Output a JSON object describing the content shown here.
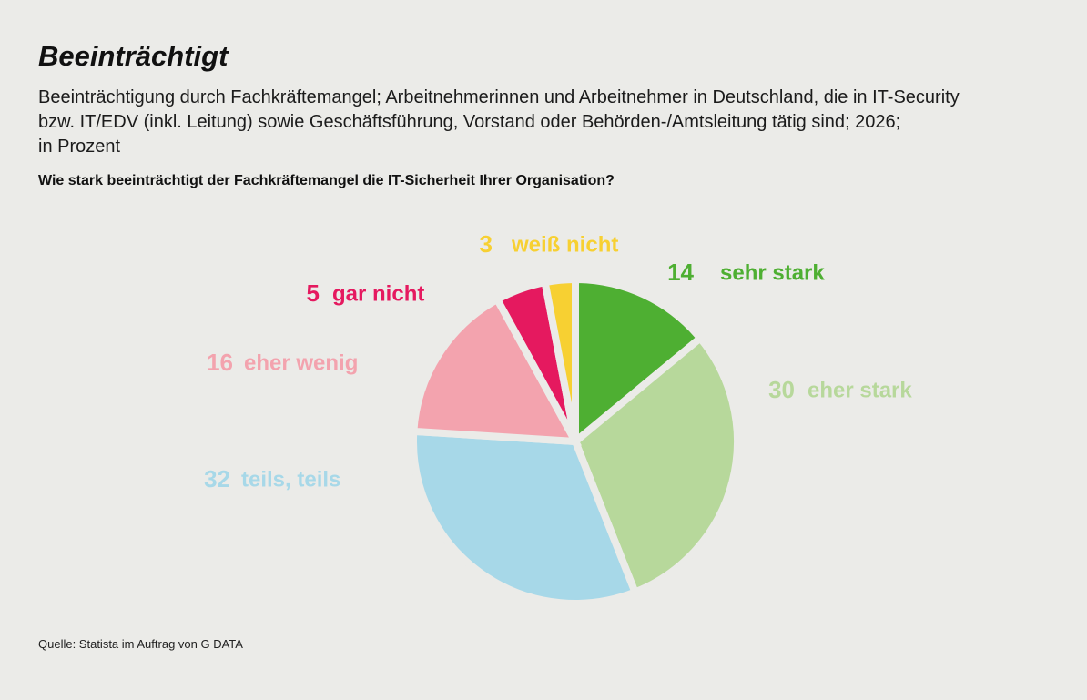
{
  "header": {
    "title": "Beeinträchtigt",
    "subtitle_lines": [
      "Beeinträchtigung durch Fachkräftemangel; Arbeitnehmerinnen und Arbeitnehmer in Deutschland, die in IT-Security",
      "bzw. IT/EDV (inkl. Leitung) sowie Geschäftsführung, Vorstand oder Behörden-/Amtsleitung tätig sind; 2026;",
      "in Prozent"
    ],
    "question": "Wie stark beeinträchtigt der Fachkräftemangel die IT-Sicherheit Ihrer Organisation?"
  },
  "footer": {
    "source": "Quelle: Statista im Auftrag von G DATA"
  },
  "chart_data": {
    "type": "pie",
    "title": "Beeinträchtigt",
    "unit": "Prozent",
    "start_angle_deg": 0,
    "direction": "clockwise",
    "slices": [
      {
        "label": "sehr stark",
        "value": 14,
        "color": "#4eaf32"
      },
      {
        "label": "eher stark",
        "value": 30,
        "color": "#b7d89b"
      },
      {
        "label": "teils, teils",
        "value": 32,
        "color": "#a7d8e8"
      },
      {
        "label": "eher wenig",
        "value": 16,
        "color": "#f3a3ae"
      },
      {
        "label": "gar nicht",
        "value": 5,
        "color": "#e5195f"
      },
      {
        "label": "weiß nicht",
        "value": 3,
        "color": "#f7d032"
      }
    ],
    "legend": "labels around pie"
  },
  "colors": {
    "background": "#ebebe8",
    "slice_gap": "#ebebe8",
    "text": "#111111"
  }
}
